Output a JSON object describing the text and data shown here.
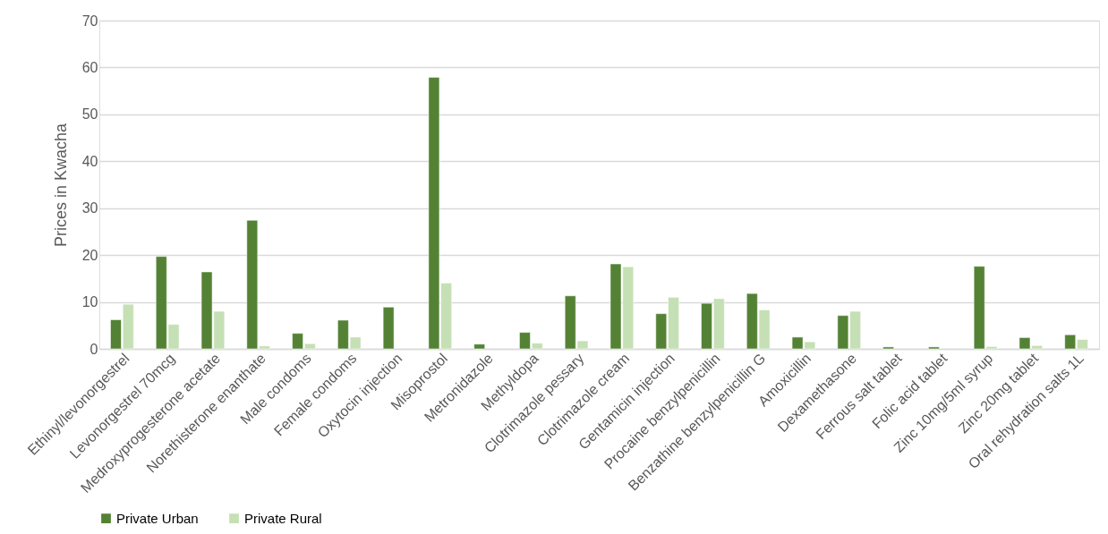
{
  "chart_data": {
    "type": "bar",
    "ylabel": "Prices in Kwacha",
    "categories": [
      "Ethinyl/levonorgestrel",
      "Levonorgestrel 70mcg",
      "Medroxyprogesterone acetate",
      "Norethisterone enanthate",
      "Male condoms",
      "Female condoms",
      "Oxytocin injection",
      "Misoprostol",
      "Metronidazole",
      "Methyldopa",
      "Clotrimazole pessary",
      "Clotrimazole cream",
      "Gentamicin injection",
      "Procaine benzylpenicillin",
      "Benzathine benzylpenicillin G",
      "Amoxicillin",
      "Dexamethasone",
      "Ferrous salt tablet",
      "Folic acid tablet",
      "Zinc 10mg/5ml syrup",
      "Zinc 20mg tablet",
      "Oral rehydration salts 1L"
    ],
    "series": [
      {
        "name": "Private Urban",
        "color": "#548235",
        "values": [
          6.2,
          19.7,
          16.4,
          27.4,
          3.3,
          6.1,
          8.9,
          57.9,
          1.0,
          3.5,
          11.3,
          18.1,
          7.5,
          9.7,
          11.8,
          2.5,
          7.1,
          0.4,
          0.4,
          17.6,
          2.4,
          3.0
        ]
      },
      {
        "name": "Private Rural",
        "color": "#c5e0b4",
        "values": [
          9.5,
          5.2,
          8.0,
          0.6,
          1.1,
          2.5,
          null,
          14.0,
          null,
          1.2,
          1.7,
          17.5,
          11.0,
          10.7,
          8.3,
          1.5,
          8.0,
          null,
          null,
          0.5,
          0.7,
          2.0
        ]
      }
    ],
    "ylim": [
      0,
      70
    ],
    "yticks": [
      0,
      10,
      20,
      30,
      40,
      50,
      60,
      70
    ],
    "grid": "y",
    "legend": "bottom"
  }
}
